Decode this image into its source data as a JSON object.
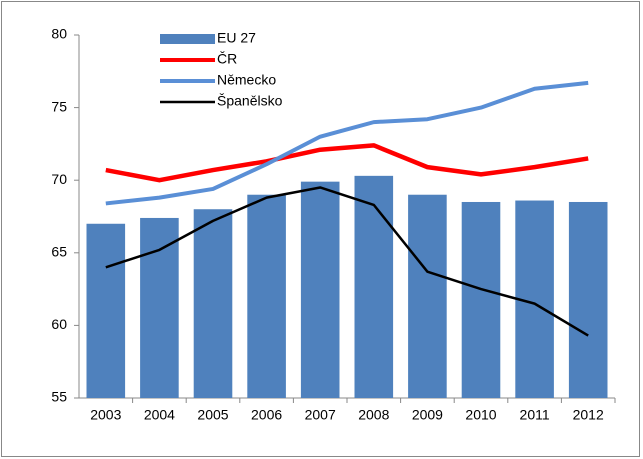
{
  "chart_data": {
    "type": "bar-line",
    "categories": [
      "2003",
      "2004",
      "2005",
      "2006",
      "2007",
      "2008",
      "2009",
      "2010",
      "2011",
      "2012"
    ],
    "series": [
      {
        "name": "EU 27",
        "type": "bar",
        "color": "#4f81bd",
        "values": [
          67.0,
          67.4,
          68.0,
          69.0,
          69.9,
          70.3,
          69.0,
          68.5,
          68.6,
          68.5
        ]
      },
      {
        "name": "ČR",
        "type": "line",
        "color": "#ff0000",
        "values": [
          70.7,
          70.0,
          70.7,
          71.3,
          72.1,
          72.4,
          70.9,
          70.4,
          70.9,
          71.5
        ]
      },
      {
        "name": "Německo",
        "type": "line",
        "color": "#5a8fd6",
        "values": [
          68.4,
          68.8,
          69.4,
          71.1,
          73.0,
          74.0,
          74.2,
          75.0,
          76.3,
          76.7
        ]
      },
      {
        "name": "Španělsko",
        "type": "line",
        "color": "#000000",
        "values": [
          64.0,
          65.2,
          67.2,
          68.8,
          69.5,
          68.3,
          63.7,
          62.5,
          61.5,
          59.3
        ]
      }
    ],
    "ylim": [
      55,
      80
    ],
    "yticks": [
      55,
      60,
      65,
      70,
      75,
      80
    ]
  }
}
